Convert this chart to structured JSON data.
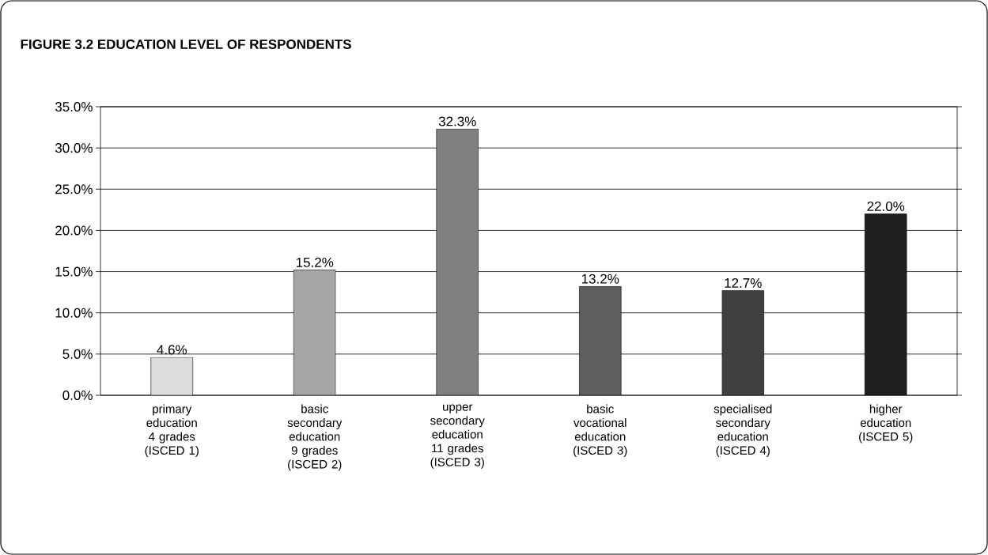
{
  "chart_data": {
    "type": "bar",
    "title": "**FIGURE 3.2 EDUCATION LEVEL OF RESPONDENTS**",
    "categories": [
      "primary education 4 grades (ISCED 1)",
      "basic secondary education 9 grades (ISCED 2)",
      "upper secondary education 11 grades (ISCED 3)",
      "basic vocational education (ISCED 3)",
      "specialised secondary education (ISCED 4)",
      "higher education (ISCED 5)"
    ],
    "values": [
      4.6,
      15.2,
      32.3,
      13.2,
      12.7,
      22.0
    ],
    "colors": [
      "#dcdcdc",
      "#a6a6a6",
      "#808080",
      "#5e5e5e",
      "#404040",
      "#1e1e1e"
    ],
    "value_labels": [
      "4.6%",
      "15.2%",
      "32.3%",
      "13.2%",
      "12.7%",
      "22.0%"
    ],
    "ylim": [
      0,
      35
    ],
    "yticks": [
      {
        "value": 0,
        "label": "0.0%"
      },
      {
        "value": 5,
        "label": "5.0%"
      },
      {
        "value": 10,
        "label": "10.0%"
      },
      {
        "value": 15,
        "label": "15.0%"
      },
      {
        "value": 20,
        "label": "20.0%"
      },
      {
        "value": 25,
        "label": "25.0%"
      },
      {
        "value": 30,
        "label": "30.0%"
      },
      {
        "value": 35,
        "label": "35.0%"
      }
    ],
    "grid": "y"
  }
}
